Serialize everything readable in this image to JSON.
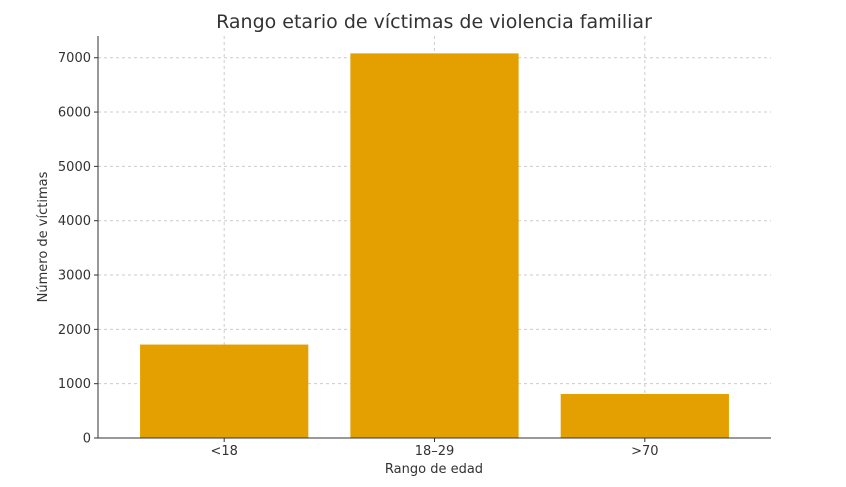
{
  "chart_data": {
    "type": "bar",
    "title": "Rango etario de víctimas de violencia familiar",
    "xlabel": "Rango de edad",
    "ylabel": "Número de víctimas",
    "categories": [
      "<18",
      "18–29",
      ">70"
    ],
    "values": [
      1720,
      7080,
      810
    ],
    "ylim": [
      0,
      7400
    ],
    "yticks": [
      0,
      1000,
      2000,
      3000,
      4000,
      5000,
      6000,
      7000
    ],
    "grid": true,
    "bar_color": "#E3A000",
    "legend": "none"
  }
}
